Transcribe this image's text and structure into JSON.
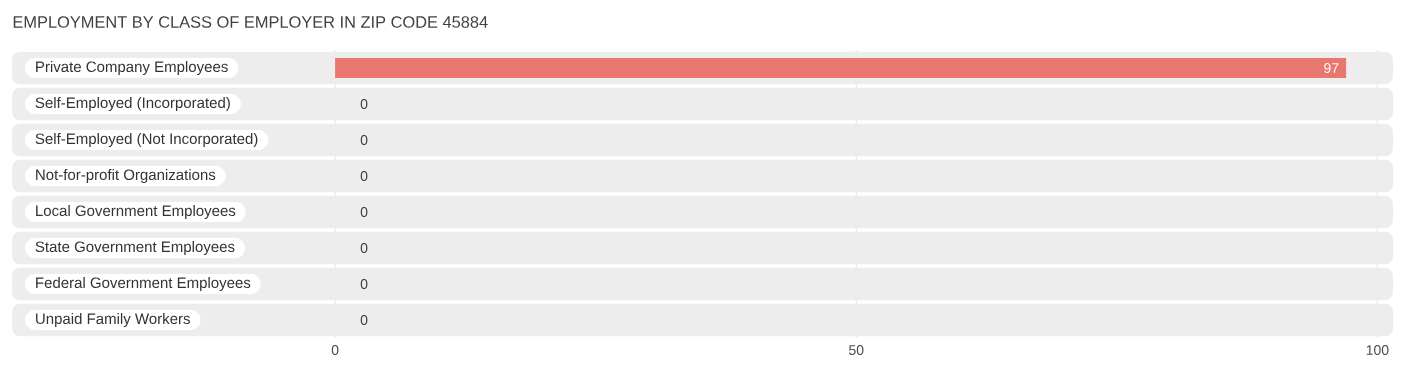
{
  "chart_data": {
    "type": "bar",
    "orientation": "horizontal",
    "title": "EMPLOYMENT BY CLASS OF EMPLOYER IN ZIP CODE 45884",
    "categories": [
      "Private Company Employees",
      "Self-Employed (Incorporated)",
      "Self-Employed (Not Incorporated)",
      "Not-for-profit Organizations",
      "Local Government Employees",
      "State Government Employees",
      "Federal Government Employees",
      "Unpaid Family Workers"
    ],
    "values": [
      97,
      0,
      0,
      0,
      0,
      0,
      0,
      0
    ],
    "colors": [
      "#e8776f",
      "#a8c6ec",
      "#c9a8d2",
      "#7dcbd0",
      "#b3b8ea",
      "#f5a3bd",
      "#fac99a",
      "#f2aaa8"
    ],
    "data_labels": true,
    "xlim": [
      -31,
      101.5
    ],
    "xticks": [
      0,
      50,
      100
    ],
    "grid": "x"
  }
}
